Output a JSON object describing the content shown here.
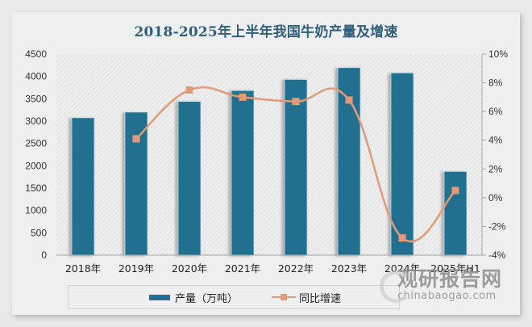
{
  "title": "2018-2025年上半年我国牛奶产量及增速",
  "legend": {
    "bar_label": "产量（万吨）",
    "line_label": "同比增速"
  },
  "watermark": {
    "cn": "观研报告网",
    "en": "chinabaogao.com"
  },
  "colors": {
    "bar": "#246f8f",
    "line": "#e49a78",
    "title": "#2f5f7a"
  },
  "chart_data": {
    "type": "bar",
    "title": "2018-2025年上半年我国牛奶产量及增速",
    "categories": [
      "2018年",
      "2019年",
      "2020年",
      "2021年",
      "2022年",
      "2023年",
      "2024年",
      "2025年H1"
    ],
    "series": [
      {
        "name": "产量（万吨）",
        "type": "bar",
        "axis": "left",
        "values": [
          3075,
          3201,
          3440,
          3683,
          3932,
          4197,
          4079,
          1873
        ]
      },
      {
        "name": "同比增速",
        "type": "line",
        "axis": "right",
        "unit": "%",
        "values": [
          null,
          4.1,
          7.5,
          7.0,
          6.7,
          6.8,
          -2.8,
          0.5
        ]
      }
    ],
    "left_axis": {
      "min": 0,
      "max": 4500,
      "step": 500,
      "ticks": [
        "0",
        "500",
        "1000",
        "1500",
        "2000",
        "2500",
        "3000",
        "3500",
        "4000",
        "4500"
      ]
    },
    "right_axis": {
      "min": -4,
      "max": 10,
      "step": 2,
      "ticks": [
        "-4%",
        "-2%",
        "0%",
        "2%",
        "4%",
        "6%",
        "8%",
        "10%"
      ]
    },
    "xlabel": "",
    "ylabel": "",
    "grid": false,
    "legend_position": "bottom"
  }
}
